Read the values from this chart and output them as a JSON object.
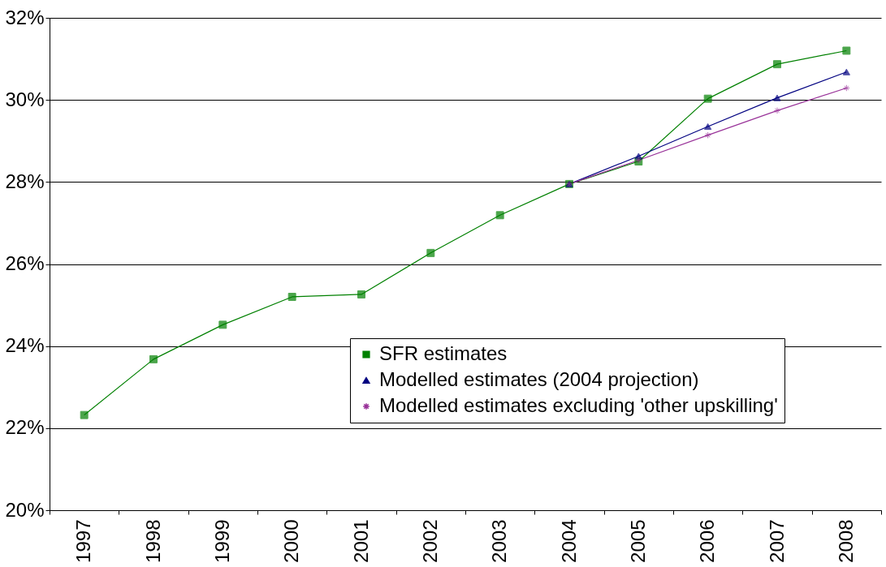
{
  "chart_data": {
    "type": "line",
    "categories": [
      "1997",
      "1998",
      "1999",
      "2000",
      "2001",
      "2002",
      "2003",
      "2004",
      "2005",
      "2006",
      "2007",
      "2008"
    ],
    "series": [
      {
        "name": "SFR estimates",
        "color": "#008000",
        "marker": "square",
        "values": [
          22.32,
          23.68,
          24.52,
          25.2,
          25.26,
          26.27,
          27.19,
          27.95,
          28.5,
          30.03,
          30.87,
          31.2
        ]
      },
      {
        "name": "Modelled estimates (2004 projection)",
        "color": "#000080",
        "marker": "triangle",
        "values": [
          null,
          null,
          null,
          null,
          null,
          null,
          null,
          27.95,
          28.63,
          29.35,
          30.05,
          30.68
        ]
      },
      {
        "name": "Modelled estimates excluding 'other upskilling'",
        "color": "#993399",
        "marker": "cross",
        "values": [
          null,
          null,
          null,
          null,
          null,
          null,
          null,
          27.95,
          28.53,
          29.14,
          29.74,
          30.29
        ]
      }
    ],
    "ylim": [
      20,
      32
    ],
    "yticks": [
      {
        "value": 20,
        "label": "20%"
      },
      {
        "value": 22,
        "label": "22%"
      },
      {
        "value": 24,
        "label": "24%"
      },
      {
        "value": 26,
        "label": "26%"
      },
      {
        "value": 28,
        "label": "28%"
      },
      {
        "value": 30,
        "label": "30%"
      },
      {
        "value": 32,
        "label": "32%"
      }
    ],
    "grid": "y",
    "legend": "bottom right",
    "line_style": "solid"
  }
}
